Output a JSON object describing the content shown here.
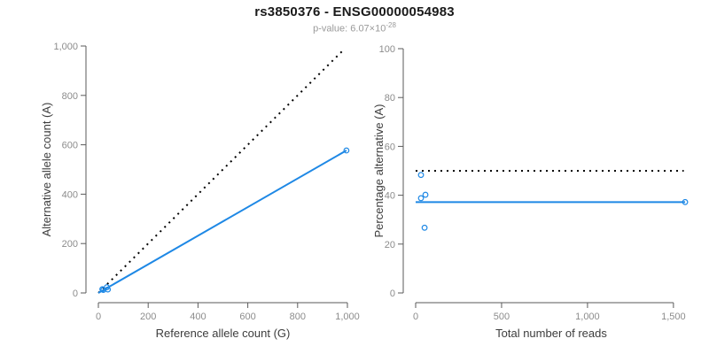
{
  "header": {
    "title": "rs3850376 - ENSG00000054983",
    "subtitle_text": "p-value: 6.07×10",
    "subtitle_exponent": "-28"
  },
  "colors": {
    "accent_blue": "#1E88E5",
    "reference_black": "#000000",
    "axis_line": "#5a5a5a",
    "tick_label": "#8c8c8c",
    "axis_title": "#3c3c3c"
  },
  "chart_data": [
    {
      "type": "scatter",
      "xlabel": "Reference allele count (G)",
      "ylabel": "Alternative allele count (A)",
      "xlim": [
        0,
        1000
      ],
      "ylim": [
        0,
        1000
      ],
      "xticks": [
        0,
        200,
        400,
        600,
        800,
        1000
      ],
      "xtick_labels": [
        "0",
        "200",
        "400",
        "600",
        "800",
        "1,000"
      ],
      "yticks": [
        0,
        200,
        400,
        600,
        800,
        1000
      ],
      "ytick_labels": [
        "0",
        "200",
        "400",
        "600",
        "800",
        "1,000"
      ],
      "grid": false,
      "reference_line": {
        "style": "dotted",
        "from": [
          0,
          0
        ],
        "to": [
          985,
          985
        ]
      },
      "fit_line": {
        "style": "solid",
        "from": [
          0,
          0
        ],
        "to": [
          996,
          577
        ]
      },
      "points": [
        [
          16,
          15
        ],
        [
          20,
          12
        ],
        [
          34,
          23
        ],
        [
          38,
          14
        ],
        [
          996,
          577
        ]
      ]
    },
    {
      "type": "scatter",
      "xlabel": "Total number of reads",
      "ylabel": "Percentage alternative (A)",
      "xlim": [
        0,
        1578
      ],
      "ylim": [
        0,
        100
      ],
      "xticks": [
        0,
        500,
        1000,
        1500
      ],
      "xtick_labels": [
        "0",
        "500",
        "1,000",
        "1,500"
      ],
      "yticks": [
        0,
        20,
        40,
        60,
        80,
        100
      ],
      "ytick_labels": [
        "0",
        "20",
        "40",
        "60",
        "80",
        "100"
      ],
      "grid": false,
      "reference_line": {
        "style": "dotted",
        "from": [
          0,
          50
        ],
        "to": [
          1560,
          50
        ]
      },
      "fit_line": {
        "style": "solid",
        "from": [
          0,
          37.2
        ],
        "to": [
          1568,
          37.2
        ]
      },
      "points": [
        [
          31,
          48.3
        ],
        [
          31,
          38.8
        ],
        [
          57,
          40.2
        ],
        [
          52,
          26.7
        ],
        [
          1568,
          37.2
        ]
      ]
    }
  ]
}
